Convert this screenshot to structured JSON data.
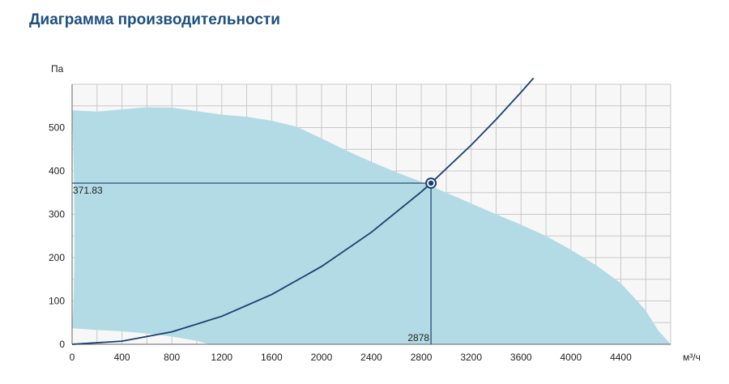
{
  "page": {
    "title": "Диаграмма производительности"
  },
  "chart_data": {
    "type": "line",
    "title": "Диаграмма производительности",
    "xlabel": "м³/ч",
    "ylabel": "Па",
    "xlim": [
      0,
      4800
    ],
    "ylim": [
      0,
      600
    ],
    "x_ticks": [
      0,
      400,
      800,
      1200,
      1600,
      2000,
      2400,
      2800,
      3200,
      3600,
      4000,
      4400
    ],
    "y_ticks": [
      0,
      100,
      200,
      300,
      400,
      500
    ],
    "grid": true,
    "colors": {
      "area": "#b3dbe5",
      "curve": "#1b3f6e",
      "grid": "#c8c8c8",
      "plot_bg": "#f7f7f7"
    },
    "operating_area": {
      "upper": [
        [
          0,
          540
        ],
        [
          200,
          537
        ],
        [
          400,
          542
        ],
        [
          600,
          547
        ],
        [
          800,
          546
        ],
        [
          1000,
          538
        ],
        [
          1200,
          530
        ],
        [
          1400,
          525
        ],
        [
          1600,
          516
        ],
        [
          1800,
          502
        ],
        [
          2000,
          475
        ],
        [
          2200,
          447
        ],
        [
          2400,
          421
        ],
        [
          2600,
          397
        ],
        [
          2800,
          375
        ],
        [
          3000,
          350
        ],
        [
          3200,
          325
        ],
        [
          3400,
          300
        ],
        [
          3600,
          276
        ],
        [
          3800,
          250
        ],
        [
          4000,
          218
        ],
        [
          4200,
          183
        ],
        [
          4400,
          141
        ],
        [
          4500,
          110
        ],
        [
          4600,
          78
        ],
        [
          4700,
          32
        ],
        [
          4800,
          0
        ]
      ],
      "lower": [
        [
          0,
          37
        ],
        [
          200,
          33
        ],
        [
          400,
          30
        ],
        [
          600,
          25
        ],
        [
          800,
          18
        ],
        [
          1000,
          8
        ],
        [
          1100,
          0
        ]
      ]
    },
    "system_curve": {
      "name": "",
      "points": [
        [
          0,
          0
        ],
        [
          400,
          7.2
        ],
        [
          800,
          28.7
        ],
        [
          1200,
          64.6
        ],
        [
          1600,
          114.8
        ],
        [
          2000,
          179.5
        ],
        [
          2400,
          258.5
        ],
        [
          2800,
          351.8
        ],
        [
          2878,
          371.83
        ],
        [
          3200,
          459.5
        ],
        [
          3400,
          518.7
        ],
        [
          3600,
          581.6
        ],
        [
          3700,
          614.2
        ]
      ]
    },
    "operating_point": {
      "x": 2878,
      "y": 371.83,
      "x_label": "2878",
      "y_label": "371.83"
    }
  }
}
